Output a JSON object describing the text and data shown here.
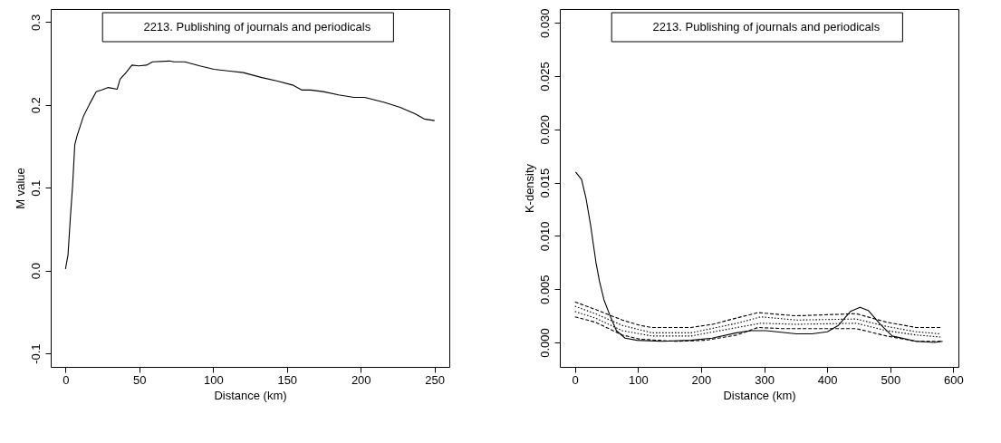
{
  "chart_data": [
    {
      "type": "line",
      "xlabel": "Distance (km)",
      "ylabel": "M value",
      "annotations": [
        "2213. Publishing of journals and periodicals"
      ],
      "xlim": [
        -10,
        260
      ],
      "ylim": [
        -0.1163,
        0.3157
      ],
      "xticks": [
        0,
        50,
        100,
        150,
        200,
        250
      ],
      "yticks": [
        {
          "value": -0.1,
          "label": "-0.1"
        },
        {
          "value": 0,
          "label": "0.0"
        },
        {
          "value": 0.1,
          "label": "0.1"
        },
        {
          "value": 0.2,
          "label": "0.2"
        },
        {
          "value": 0.3,
          "label": "0.3"
        }
      ],
      "series": [
        {
          "color": "#000000",
          "line_style": "solid",
          "x": [
            0,
            1.7,
            3.3,
            4.8,
            6.3,
            7.9,
            12.1,
            16.3,
            20.8,
            24.6,
            29,
            35,
            37,
            41,
            45,
            49.6,
            54.8,
            59,
            70.4,
            73.5,
            80.8,
            91,
            100.6,
            110,
            120.4,
            133,
            143,
            153.8,
            160,
            166,
            174.6,
            185,
            195.4,
            202.7,
            216,
            226.7,
            237,
            243,
            250
          ],
          "values": [
            0.002,
            0.019,
            0.064,
            0.102,
            0.152,
            0.163,
            0.186,
            0.201,
            0.216,
            0.218,
            0.221,
            0.219,
            0.231,
            0.239,
            0.248,
            0.247,
            0.248,
            0.252,
            0.253,
            0.252,
            0.252,
            0.247,
            0.243,
            0.241,
            0.239,
            0.233,
            0.229,
            0.224,
            0.218,
            0.218,
            0.216,
            0.212,
            0.209,
            0.209,
            0.203,
            0.197,
            0.189,
            0.183,
            0.181
          ]
        }
      ]
    },
    {
      "type": "line",
      "xlabel": "Distance (km)",
      "ylabel": "K-density",
      "annotations": [
        "2213. Publishing of journals and periodicals"
      ],
      "xlim": [
        -24,
        608
      ],
      "ylim": [
        -0.0023,
        0.0313
      ],
      "xticks": [
        0,
        100,
        200,
        300,
        400,
        500,
        600
      ],
      "yticks": [
        {
          "value": 0,
          "label": "0.000"
        },
        {
          "value": 0.005,
          "label": "0.005"
        },
        {
          "value": 0.01,
          "label": "0.010"
        },
        {
          "value": 0.015,
          "label": "0.015"
        },
        {
          "value": 0.02,
          "label": "0.020"
        },
        {
          "value": 0.025,
          "label": "0.025"
        },
        {
          "value": 0.03,
          "label": "0.030"
        }
      ],
      "series": [
        {
          "color": "#000000",
          "line_style": "solid",
          "x": [
            1,
            10.5,
            17.6,
            24.8,
            33.3,
            39,
            46,
            55,
            65.7,
            79.5,
            98.6,
            137,
            184,
            217.6,
            256,
            279.5,
            303,
            351,
            375.7,
            400,
            417.6,
            436.7,
            452,
            465,
            484,
            503,
            541,
            570,
            583
          ],
          "values": [
            0.016,
            0.0153,
            0.0135,
            0.011,
            0.0075,
            0.0057,
            0.004,
            0.0026,
            0.0011,
            0.0004,
            0.0002,
            0.0001,
            0.0002,
            0.0004,
            0.0009,
            0.0011,
            0.0011,
            0.0008,
            0.0008,
            0.001,
            0.0016,
            0.0029,
            0.0033,
            0.003,
            0.0017,
            0.0006,
            0.0001,
            0,
            0.0001
          ]
        },
        {
          "color": "#000000",
          "line_style": "dashed",
          "x": [
            0,
            32,
            75,
            103,
            122,
            184,
            218,
            257,
            290,
            328,
            351,
            400,
            446,
            494,
            541,
            580
          ],
          "values": [
            0.0038,
            0.0031,
            0.0021,
            0.0016,
            0.0014,
            0.0014,
            0.0017,
            0.0023,
            0.0028,
            0.0026,
            0.0025,
            0.0026,
            0.0027,
            0.0019,
            0.0014,
            0.0014
          ]
        },
        {
          "color": "#000000",
          "line_style": "dotted",
          "x": [
            0,
            32,
            75,
            122,
            184,
            257,
            295,
            351,
            446,
            494,
            541,
            580
          ],
          "values": [
            0.0034,
            0.0027,
            0.0016,
            0.0009,
            0.0009,
            0.0018,
            0.0024,
            0.0021,
            0.0022,
            0.0015,
            0.001,
            0.0008
          ]
        },
        {
          "color": "#000000",
          "line_style": "dotted",
          "x": [
            0,
            32,
            75,
            122,
            184,
            257,
            295,
            351,
            446,
            494,
            541,
            580
          ],
          "values": [
            0.0029,
            0.0023,
            0.0011,
            0.0006,
            0.0006,
            0.0014,
            0.0018,
            0.0017,
            0.0018,
            0.0011,
            0.0007,
            0.0005
          ]
        },
        {
          "color": "#000000",
          "line_style": "dashed",
          "x": [
            0,
            32,
            75,
            103,
            160,
            208,
            257,
            290,
            328,
            400,
            446,
            494,
            541,
            580
          ],
          "values": [
            0.0024,
            0.0019,
            0.0007,
            0.0003,
            0.0001,
            0.0002,
            0.0007,
            0.0014,
            0.0013,
            0.0013,
            0.0013,
            0.0006,
            0.0001,
            0.0001
          ]
        }
      ]
    }
  ]
}
